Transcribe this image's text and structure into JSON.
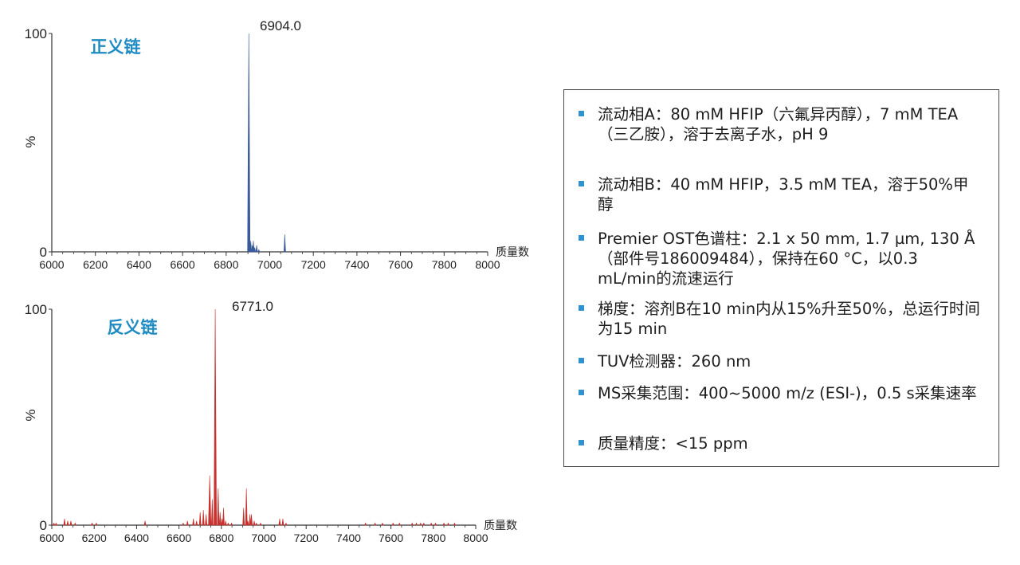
{
  "chart_data": [
    {
      "type": "bar",
      "title": "正义链",
      "peak_annotation": "6904.0",
      "xlabel": "质量数",
      "ylabel": "%",
      "xlim": [
        6000,
        8000
      ],
      "ylim": [
        0,
        100
      ],
      "x_ticks": [
        "6000",
        "6200",
        "6400",
        "6600",
        "6800",
        "7000",
        "7200",
        "7400",
        "7600",
        "7800",
        "8000"
      ],
      "y_ticks": [
        "0",
        "100"
      ],
      "color": "#3b5a9a",
      "series": [
        {
          "x": [
            6904,
            6908,
            6913,
            6920,
            6925,
            6931,
            6940,
            6950,
            7069
          ],
          "y": [
            100,
            4,
            5,
            3,
            5,
            2,
            3,
            1,
            8
          ]
        }
      ]
    },
    {
      "type": "bar",
      "title": "反义链",
      "peak_annotation": "6771.0",
      "xlabel": "质量数",
      "ylabel": "%",
      "xlim": [
        6000,
        8000
      ],
      "ylim": [
        0,
        100
      ],
      "x_ticks": [
        "6000",
        "6200",
        "6400",
        "6600",
        "6800",
        "7000",
        "7200",
        "7400",
        "7600",
        "7800",
        "8000"
      ],
      "y_ticks": [
        "0",
        "100"
      ],
      "color": "#c8322e",
      "series": [
        {
          "x": [
            6010,
            6020,
            6060,
            6075,
            6090,
            6110,
            6190,
            6210,
            6440,
            6620,
            6640,
            6668,
            6683,
            6700,
            6715,
            6728,
            6745,
            6757,
            6771,
            6785,
            6794,
            6803,
            6810,
            6820,
            6832,
            6848,
            6905,
            6918,
            6925,
            6935,
            6942,
            6955,
            6965,
            6985,
            7075,
            7090,
            7105,
            7480,
            7525,
            7560,
            7610,
            7640,
            7700,
            7720,
            7740,
            7755,
            7790,
            7810,
            7850,
            7870,
            7900
          ],
          "y": [
            1,
            1,
            3,
            2,
            2,
            1,
            1,
            1,
            2,
            1,
            2,
            3,
            2,
            6,
            7,
            5,
            23,
            12,
            100,
            17,
            6,
            3,
            8,
            2,
            1,
            1,
            8,
            17,
            2,
            5,
            5,
            2,
            1,
            1,
            3,
            3,
            1,
            1,
            1,
            1,
            1,
            1,
            1,
            1,
            1,
            1,
            1,
            1,
            1,
            1,
            1
          ]
        }
      ]
    }
  ],
  "info": {
    "items": [
      "流动相A：80 mM HFIP（六氟异丙醇），7 mM TEA（三乙胺），溶于去离子水，pH 9",
      "流动相B：40 mM HFIP，3.5 mM TEA，溶于50%甲醇",
      "Premier OST色谱柱：2.1 x 50 mm, 1.7 µm, 130 Å（部件号186009484），保持在60 °C，以0.3 mL/min的流速运行",
      "梯度：溶剂B在10 min内从15%升至50%，总运行时间为15 min",
      "TUV检测器：260 nm",
      "MS采集范围：400~5000 m/z (ESI-)，0.5 s采集速率",
      "质量精度：<15 ppm"
    ],
    "bullet_color": "#2f93d1",
    "title_color": "#1e8bc3"
  }
}
